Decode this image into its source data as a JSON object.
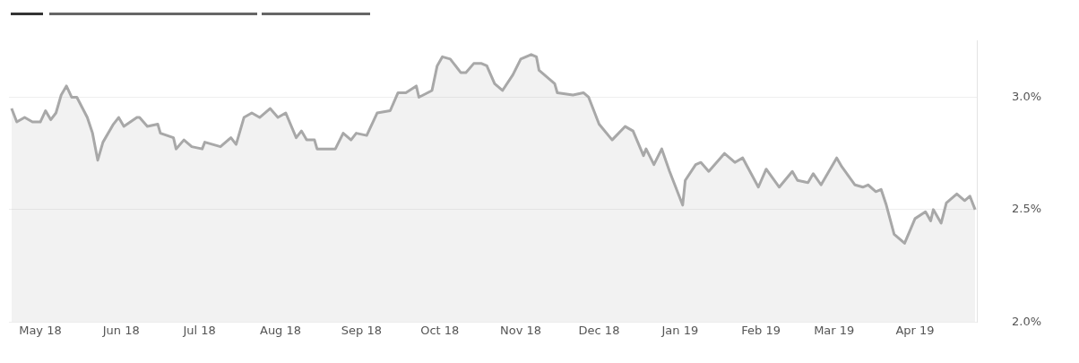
{
  "chart_data": {
    "type": "area",
    "x": [
      "2018-04-20",
      "2018-04-22",
      "2018-04-25",
      "2018-04-28",
      "2018-05-01",
      "2018-05-03",
      "2018-05-05",
      "2018-05-07",
      "2018-05-09",
      "2018-05-11",
      "2018-05-13",
      "2018-05-15",
      "2018-05-19",
      "2018-05-21",
      "2018-05-23",
      "2018-05-25",
      "2018-05-29",
      "2018-05-31",
      "2018-06-02",
      "2018-06-07",
      "2018-06-08",
      "2018-06-11",
      "2018-06-15",
      "2018-06-16",
      "2018-06-21",
      "2018-06-22",
      "2018-06-25",
      "2018-06-28",
      "2018-07-02",
      "2018-07-03",
      "2018-07-09",
      "2018-07-13",
      "2018-07-15",
      "2018-07-18",
      "2018-07-21",
      "2018-07-24",
      "2018-07-28",
      "2018-07-31",
      "2018-08-03",
      "2018-08-07",
      "2018-08-09",
      "2018-08-11",
      "2018-08-14",
      "2018-08-15",
      "2018-08-18",
      "2018-08-22",
      "2018-08-25",
      "2018-08-28",
      "2018-08-30",
      "2018-09-03",
      "2018-09-07",
      "2018-09-12",
      "2018-09-15",
      "2018-09-18",
      "2018-09-22",
      "2018-09-23",
      "2018-09-28",
      "2018-09-30",
      "2018-10-02",
      "2018-10-05",
      "2018-10-09",
      "2018-10-11",
      "2018-10-14",
      "2018-10-17",
      "2018-10-19",
      "2018-10-22",
      "2018-10-25",
      "2018-10-29",
      "2018-11-01",
      "2018-11-05",
      "2018-11-07",
      "2018-11-08",
      "2018-11-14",
      "2018-11-15",
      "2018-11-21",
      "2018-11-25",
      "2018-11-27",
      "2018-12-01",
      "2018-12-06",
      "2018-12-11",
      "2018-12-14",
      "2018-12-18",
      "2018-12-19",
      "2018-12-22",
      "2018-12-25",
      "2018-12-28",
      "2019-01-02",
      "2019-01-03",
      "2019-01-07",
      "2019-01-09",
      "2019-01-12",
      "2019-01-18",
      "2019-01-22",
      "2019-01-25",
      "2019-01-31",
      "2019-02-03",
      "2019-02-08",
      "2019-02-13",
      "2019-02-15",
      "2019-02-19",
      "2019-02-21",
      "2019-02-24",
      "2019-03-02",
      "2019-03-04",
      "2019-03-09",
      "2019-03-12",
      "2019-03-14",
      "2019-03-17",
      "2019-03-19",
      "2019-03-21",
      "2019-03-24",
      "2019-03-26",
      "2019-03-28",
      "2019-04-01",
      "2019-04-05",
      "2019-04-07",
      "2019-04-08",
      "2019-04-11",
      "2019-04-13",
      "2019-04-17",
      "2019-04-20",
      "2019-04-22",
      "2019-04-24"
    ],
    "series": [
      {
        "color": "#a8a8a8",
        "values": [
          2.95,
          2.89,
          2.91,
          2.89,
          2.89,
          2.94,
          2.9,
          2.93,
          3.01,
          3.05,
          3.0,
          3.0,
          2.91,
          2.84,
          2.72,
          2.8,
          2.88,
          2.91,
          2.87,
          2.91,
          2.91,
          2.87,
          2.88,
          2.84,
          2.82,
          2.77,
          2.81,
          2.78,
          2.77,
          2.8,
          2.78,
          2.82,
          2.79,
          2.91,
          2.93,
          2.91,
          2.95,
          2.91,
          2.93,
          2.82,
          2.85,
          2.81,
          2.81,
          2.77,
          2.77,
          2.77,
          2.84,
          2.81,
          2.84,
          2.83,
          2.93,
          2.94,
          3.02,
          3.02,
          3.05,
          3.0,
          3.03,
          3.14,
          3.18,
          3.17,
          3.11,
          3.11,
          3.15,
          3.15,
          3.14,
          3.06,
          3.03,
          3.1,
          3.17,
          3.19,
          3.18,
          3.12,
          3.06,
          3.02,
          3.01,
          3.02,
          3.0,
          2.88,
          2.81,
          2.87,
          2.85,
          2.74,
          2.77,
          2.7,
          2.77,
          2.67,
          2.52,
          2.63,
          2.7,
          2.71,
          2.67,
          2.75,
          2.71,
          2.73,
          2.6,
          2.68,
          2.6,
          2.67,
          2.63,
          2.62,
          2.66,
          2.61,
          2.73,
          2.69,
          2.61,
          2.6,
          2.61,
          2.58,
          2.59,
          2.52,
          2.39,
          2.37,
          2.35,
          2.46,
          2.49,
          2.45,
          2.5,
          2.44,
          2.53,
          2.57,
          2.54,
          2.56,
          2.5
        ]
      }
    ],
    "xlim": [
      "2018-04-19",
      "2019-04-25"
    ],
    "xticks": [
      {
        "value": "2018-05-01",
        "label": "May 18"
      },
      {
        "value": "2018-06-01",
        "label": "Jun 18"
      },
      {
        "value": "2018-07-01",
        "label": "Jul 18"
      },
      {
        "value": "2018-08-01",
        "label": "Aug 18"
      },
      {
        "value": "2018-09-01",
        "label": "Sep 18"
      },
      {
        "value": "2018-10-01",
        "label": "Oct 18"
      },
      {
        "value": "2018-11-01",
        "label": "Nov 18"
      },
      {
        "value": "2018-12-01",
        "label": "Dec 18"
      },
      {
        "value": "2019-01-01",
        "label": "Jan 19"
      },
      {
        "value": "2019-02-01",
        "label": "Feb 19"
      },
      {
        "value": "2019-03-01",
        "label": "Mar 19"
      },
      {
        "value": "2019-04-01",
        "label": "Apr 19"
      }
    ],
    "ylim": [
      2.0,
      3.25
    ],
    "yticks": [
      {
        "value": 2,
        "label": "2.0%"
      },
      {
        "value": 2.5,
        "label": "2.5%"
      },
      {
        "value": 3,
        "label": "3.0%"
      }
    ],
    "grid": "y",
    "marker": "none"
  }
}
